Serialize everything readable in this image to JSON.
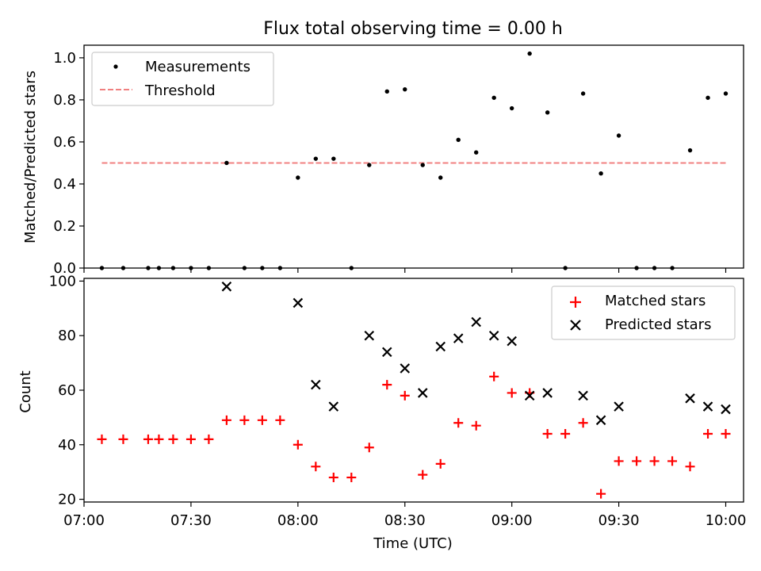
{
  "figure": {
    "title": "Flux total observing time = 0.00 h"
  },
  "chart_data": [
    {
      "type": "scatter",
      "ylabel": "Matched/Predicted stars",
      "xlim": [
        "07:00",
        "10:05"
      ],
      "ylim": [
        0,
        1.06
      ],
      "yticks": [
        0.0,
        0.2,
        0.4,
        0.6,
        0.8,
        1.0
      ],
      "ytick_labels": [
        "0.0",
        "0.2",
        "0.4",
        "0.6",
        "0.8",
        "1.0"
      ],
      "grid": false,
      "legend_position": "top-left",
      "series": [
        {
          "name": "Measurements",
          "marker": "dot",
          "color": "#000000",
          "x": [
            "07:05",
            "07:11",
            "07:18",
            "07:21",
            "07:25",
            "07:30",
            "07:35",
            "07:40",
            "07:45",
            "07:50",
            "07:55",
            "08:00",
            "08:05",
            "08:10",
            "08:15",
            "08:20",
            "08:25",
            "08:30",
            "08:35",
            "08:40",
            "08:45",
            "08:50",
            "08:55",
            "09:00",
            "09:05",
            "09:10",
            "09:15",
            "09:20",
            "09:25",
            "09:30",
            "09:35",
            "09:40",
            "09:45",
            "09:50",
            "09:55",
            "10:00"
          ],
          "y": [
            0.0,
            0.0,
            0.0,
            0.0,
            0.0,
            0.0,
            0.0,
            0.5,
            0.0,
            0.0,
            0.0,
            0.43,
            0.52,
            0.52,
            0.0,
            0.49,
            0.84,
            0.85,
            0.49,
            0.43,
            0.61,
            0.55,
            0.81,
            0.76,
            1.02,
            0.74,
            0.0,
            0.83,
            0.45,
            0.63,
            0.0,
            0.0,
            0.0,
            0.56,
            0.81,
            0.83
          ]
        },
        {
          "name": "Threshold",
          "style": "dashed",
          "color": "#f08080",
          "x": [
            "07:05",
            "10:00"
          ],
          "y": [
            0.5,
            0.5
          ]
        }
      ]
    },
    {
      "type": "scatter",
      "xlabel": "Time (UTC)",
      "ylabel": "Count",
      "xlim": [
        "07:00",
        "10:05"
      ],
      "ylim": [
        19,
        101
      ],
      "xticks": [
        "07:00",
        "07:30",
        "08:00",
        "08:30",
        "09:00",
        "09:30",
        "10:00"
      ],
      "yticks": [
        20,
        40,
        60,
        80,
        100
      ],
      "ytick_labels": [
        "20",
        "40",
        "60",
        "80",
        "100"
      ],
      "grid": false,
      "legend_position": "top-right",
      "series": [
        {
          "name": "Matched stars",
          "marker": "plus",
          "color": "#ff0000",
          "x": [
            "07:05",
            "07:11",
            "07:18",
            "07:21",
            "07:25",
            "07:30",
            "07:35",
            "07:40",
            "07:45",
            "07:50",
            "07:55",
            "08:00",
            "08:05",
            "08:10",
            "08:15",
            "08:20",
            "08:25",
            "08:30",
            "08:35",
            "08:40",
            "08:45",
            "08:50",
            "08:55",
            "09:00",
            "09:05",
            "09:10",
            "09:15",
            "09:20",
            "09:25",
            "09:30",
            "09:35",
            "09:40",
            "09:45",
            "09:50",
            "09:55",
            "10:00"
          ],
          "y": [
            42,
            42,
            42,
            42,
            42,
            42,
            42,
            49,
            49,
            49,
            49,
            40,
            32,
            28,
            28,
            39,
            62,
            58,
            29,
            33,
            48,
            47,
            65,
            59,
            59,
            44,
            44,
            48,
            22,
            34,
            34,
            34,
            34,
            32,
            44,
            44
          ]
        },
        {
          "name": "Predicted stars",
          "marker": "x",
          "color": "#000000",
          "x": [
            "07:40",
            "08:00",
            "08:05",
            "08:10",
            "08:20",
            "08:25",
            "08:30",
            "08:35",
            "08:40",
            "08:45",
            "08:50",
            "08:55",
            "09:00",
            "09:05",
            "09:10",
            "09:20",
            "09:25",
            "09:30",
            "09:50",
            "09:55",
            "10:00"
          ],
          "y": [
            98,
            92,
            62,
            54,
            80,
            74,
            68,
            59,
            76,
            79,
            85,
            80,
            78,
            58,
            59,
            58,
            49,
            54,
            57,
            54,
            53
          ]
        }
      ]
    }
  ]
}
